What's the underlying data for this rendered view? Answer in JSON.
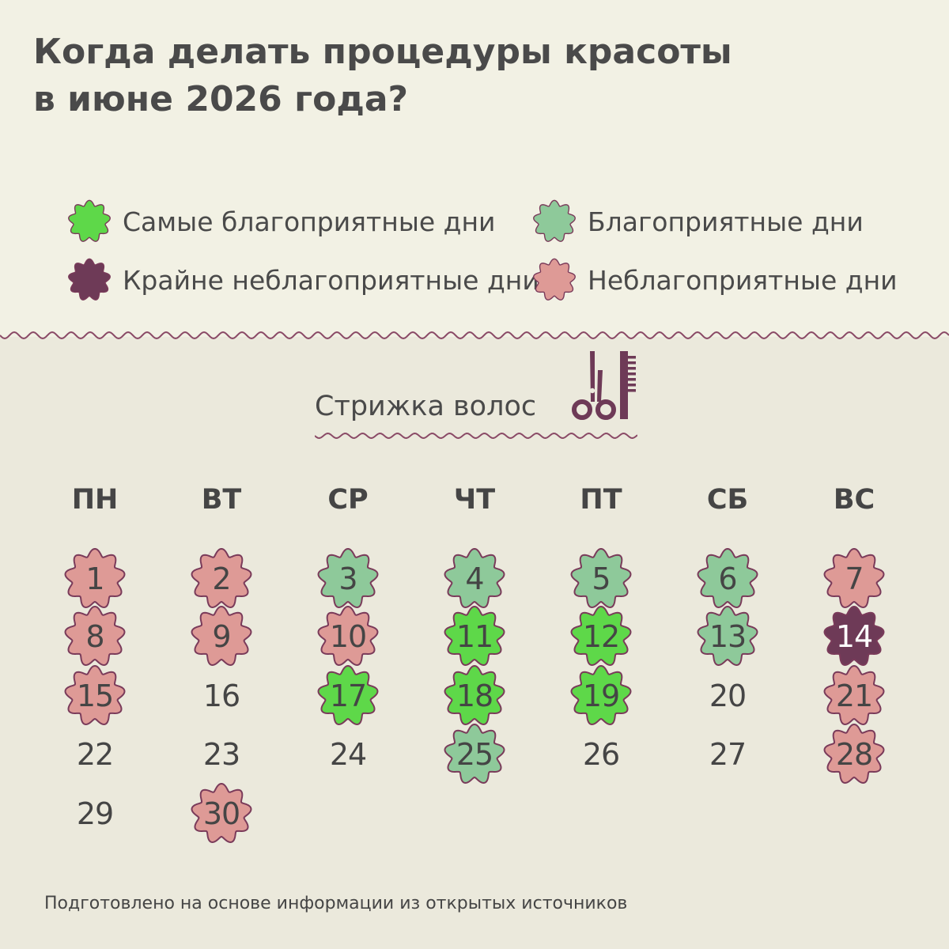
{
  "title": {
    "line1": "Когда делать процедуры красоты",
    "line2": "в июне 2026 года?"
  },
  "colors": {
    "most_favorable": "#5ed849",
    "favorable": "#8ec99a",
    "extremely_unfavorable": "#6e3a57",
    "unfavorable": "#de9a96",
    "outline": "#7a3b5a"
  },
  "legend": {
    "most_favorable": "Самые благоприятные дни",
    "favorable": "Благоприятные дни",
    "extremely_unfavorable": "Крайне неблагоприятные дни",
    "unfavorable": "Неблагоприятные дни"
  },
  "section": {
    "title": "Стрижка волос",
    "icon": "scissors-comb-icon"
  },
  "weekdays": [
    "ПН",
    "ВТ",
    "СР",
    "ЧТ",
    "ПТ",
    "СБ",
    "ВС"
  ],
  "days": [
    {
      "day": "1",
      "status": "unfavorable"
    },
    {
      "day": "2",
      "status": "unfavorable"
    },
    {
      "day": "3",
      "status": "favorable"
    },
    {
      "day": "4",
      "status": "favorable"
    },
    {
      "day": "5",
      "status": "favorable"
    },
    {
      "day": "6",
      "status": "favorable"
    },
    {
      "day": "7",
      "status": "unfavorable"
    },
    {
      "day": "8",
      "status": "unfavorable"
    },
    {
      "day": "9",
      "status": "unfavorable"
    },
    {
      "day": "10",
      "status": "unfavorable"
    },
    {
      "day": "11",
      "status": "most_favorable"
    },
    {
      "day": "12",
      "status": "most_favorable"
    },
    {
      "day": "13",
      "status": "favorable"
    },
    {
      "day": "14",
      "status": "extremely_unfavorable"
    },
    {
      "day": "15",
      "status": "unfavorable"
    },
    {
      "day": "16",
      "status": "none"
    },
    {
      "day": "17",
      "status": "most_favorable"
    },
    {
      "day": "18",
      "status": "most_favorable"
    },
    {
      "day": "19",
      "status": "most_favorable"
    },
    {
      "day": "20",
      "status": "none"
    },
    {
      "day": "21",
      "status": "unfavorable"
    },
    {
      "day": "22",
      "status": "none"
    },
    {
      "day": "23",
      "status": "none"
    },
    {
      "day": "24",
      "status": "none"
    },
    {
      "day": "25",
      "status": "favorable"
    },
    {
      "day": "26",
      "status": "none"
    },
    {
      "day": "27",
      "status": "none"
    },
    {
      "day": "28",
      "status": "unfavorable"
    },
    {
      "day": "29",
      "status": "none"
    },
    {
      "day": "30",
      "status": "unfavorable"
    }
  ],
  "footer": "Подготовлено на основе информации из открытых источников"
}
